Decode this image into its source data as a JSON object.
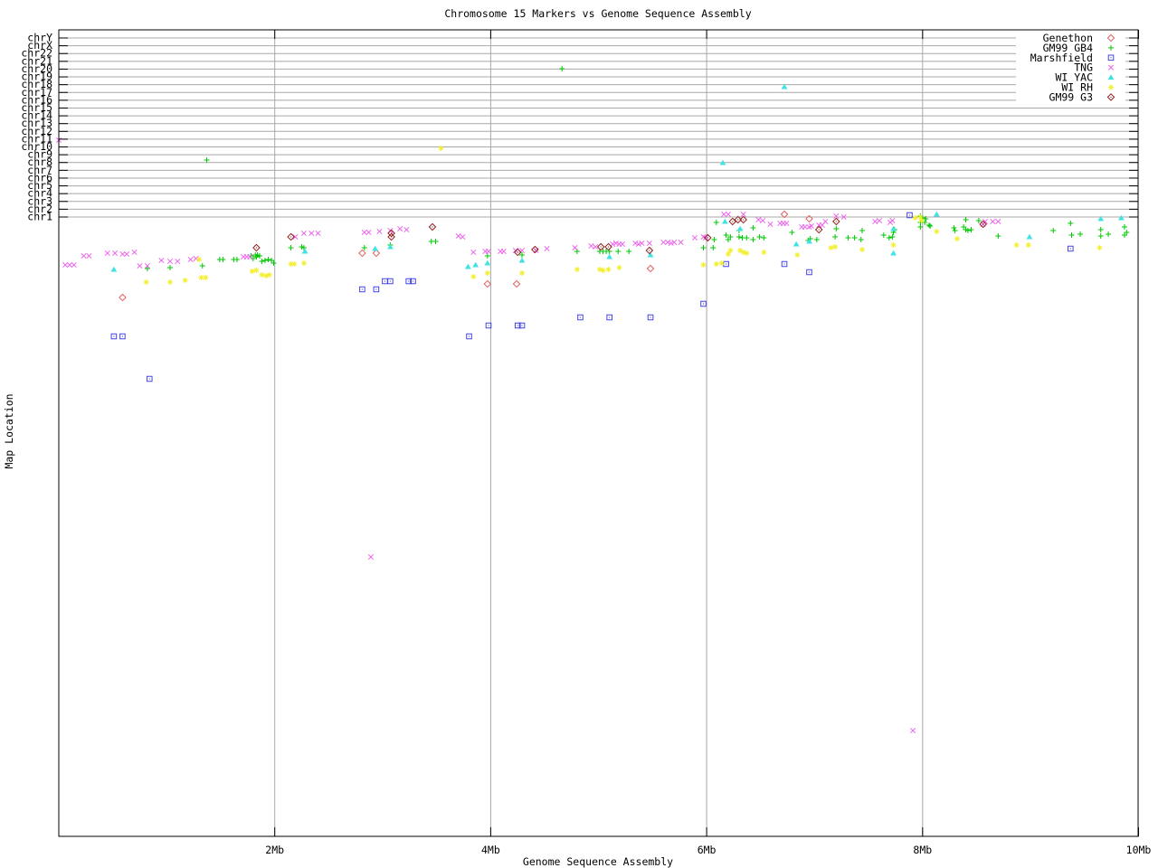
{
  "title": "Chromosome 15 Markers vs Genome Sequence Assembly",
  "axes": {
    "x": {
      "label": "Genome Sequence Assembly",
      "tick_labels": [
        "2Mb",
        "4Mb",
        "6Mb",
        "8Mb",
        "10Mb"
      ],
      "tick_mb": [
        2,
        4,
        6,
        8,
        10
      ],
      "grid_mb": [
        2,
        4,
        6,
        8
      ],
      "range_mb": [
        0,
        10
      ]
    },
    "y": {
      "label": "Map Location",
      "chromosomes": [
        "chrY",
        "chrX",
        "chr22",
        "chr21",
        "chr20",
        "chr19",
        "chr18",
        "chr17",
        "chr16",
        "chr15",
        "chr14",
        "chr13",
        "chr12",
        "chr11",
        "chr10",
        "chr9",
        "chr8",
        "chr7",
        "chr6",
        "chr5",
        "chr4",
        "chr3",
        "chr2",
        "chr1"
      ]
    }
  },
  "colors": {
    "grid": "#a8a8a8",
    "axis": "#000000",
    "background": "#ffffff"
  },
  "legend_position": "top-right-inside",
  "chart_data": {
    "type": "scatter",
    "title": "Chromosome 15 Markers vs Genome Sequence Assembly",
    "xlabel": "Genome Sequence Assembly",
    "ylabel": "Map Location",
    "x_unit": "Mb",
    "x_range": [
      0,
      10
    ],
    "grid": true,
    "y_encoding": "pixel row in 960px-tall image; chromosome tick rows run chrY=42 (top) to chr1=240, main chr15 marker band lies below chr1",
    "series": [
      {
        "name": "Genethon",
        "marker": "open-diamond",
        "color": "#e35f5f",
        "points": [
          [
            0.59,
            329
          ],
          [
            2.81,
            280
          ],
          [
            2.94,
            280
          ],
          [
            3.97,
            314
          ],
          [
            4.24,
            314
          ],
          [
            5.48,
            297
          ],
          [
            6.72,
            237
          ],
          [
            6.95,
            242
          ]
        ]
      },
      {
        "name": "GM99 GB4",
        "marker": "plus",
        "color": "#00c800",
        "points": [
          [
            0.82,
            297
          ],
          [
            1.03,
            296
          ],
          [
            1.33,
            294
          ],
          [
            1.37,
            177
          ],
          [
            1.49,
            287
          ],
          [
            1.52,
            287
          ],
          [
            1.62,
            287
          ],
          [
            1.65,
            287
          ],
          [
            1.78,
            283
          ],
          [
            1.8,
            286
          ],
          [
            1.82,
            282
          ],
          [
            1.83,
            284
          ],
          [
            1.84,
            282
          ],
          [
            1.86,
            283
          ],
          [
            1.88,
            289
          ],
          [
            1.91,
            288
          ],
          [
            1.94,
            287
          ],
          [
            1.97,
            288
          ],
          [
            1.99,
            291
          ],
          [
            2.15,
            274
          ],
          [
            2.25,
            273
          ],
          [
            2.27,
            274
          ],
          [
            2.83,
            274
          ],
          [
            3.07,
            271
          ],
          [
            3.45,
            267
          ],
          [
            3.49,
            267
          ],
          [
            3.97,
            283
          ],
          [
            4.29,
            282
          ],
          [
            4.66,
            76
          ],
          [
            4.8,
            278
          ],
          [
            5.01,
            278
          ],
          [
            5.04,
            278
          ],
          [
            5.07,
            278
          ],
          [
            5.1,
            278
          ],
          [
            5.18,
            278
          ],
          [
            5.28,
            278
          ],
          [
            5.97,
            274
          ],
          [
            6.06,
            274
          ],
          [
            6.07,
            265
          ],
          [
            6.09,
            246
          ],
          [
            6.18,
            260
          ],
          [
            6.2,
            265
          ],
          [
            6.22,
            262
          ],
          [
            6.3,
            262
          ],
          [
            6.3,
            255
          ],
          [
            6.33,
            263
          ],
          [
            6.37,
            263
          ],
          [
            6.43,
            252
          ],
          [
            6.43,
            265
          ],
          [
            6.49,
            262
          ],
          [
            6.53,
            263
          ],
          [
            6.79,
            257
          ],
          [
            6.94,
            266
          ],
          [
            6.96,
            264
          ],
          [
            7.02,
            265
          ],
          [
            7.19,
            262
          ],
          [
            7.2,
            253
          ],
          [
            7.31,
            263
          ],
          [
            7.37,
            263
          ],
          [
            7.43,
            265
          ],
          [
            7.44,
            255
          ],
          [
            7.64,
            260
          ],
          [
            7.69,
            263
          ],
          [
            7.72,
            262
          ],
          [
            7.73,
            257
          ],
          [
            7.74,
            254
          ],
          [
            7.98,
            239
          ],
          [
            7.98,
            246
          ],
          [
            7.98,
            251
          ],
          [
            8.0,
            241
          ],
          [
            8.02,
            246
          ],
          [
            8.03,
            242
          ],
          [
            8.06,
            249
          ],
          [
            8.07,
            250
          ],
          [
            8.29,
            252
          ],
          [
            8.3,
            255
          ],
          [
            8.38,
            251
          ],
          [
            8.4,
            243
          ],
          [
            8.4,
            254
          ],
          [
            8.42,
            255
          ],
          [
            8.45,
            254
          ],
          [
            8.52,
            244
          ],
          [
            8.7,
            261
          ],
          [
            9.21,
            255
          ],
          [
            9.37,
            247
          ],
          [
            9.38,
            260
          ],
          [
            9.46,
            259
          ],
          [
            9.65,
            254
          ],
          [
            9.65,
            261
          ],
          [
            9.72,
            259
          ],
          [
            9.87,
            251
          ],
          [
            9.87,
            260
          ],
          [
            9.89,
            257
          ]
        ]
      },
      {
        "name": "Marshfield",
        "marker": "open-square-dot",
        "color": "#4444e8",
        "points": [
          [
            0.51,
            372
          ],
          [
            0.59,
            372
          ],
          [
            0.84,
            419
          ],
          [
            2.81,
            320
          ],
          [
            2.94,
            320
          ],
          [
            3.02,
            311
          ],
          [
            3.07,
            311
          ],
          [
            3.24,
            311
          ],
          [
            3.28,
            311
          ],
          [
            3.8,
            372
          ],
          [
            3.98,
            360
          ],
          [
            4.25,
            360
          ],
          [
            4.29,
            360
          ],
          [
            4.83,
            351
          ],
          [
            5.1,
            351
          ],
          [
            5.48,
            351
          ],
          [
            5.97,
            336
          ],
          [
            6.18,
            292
          ],
          [
            6.72,
            292
          ],
          [
            6.95,
            301
          ],
          [
            7.88,
            238
          ],
          [
            9.37,
            275
          ]
        ]
      },
      {
        "name": "TNG",
        "marker": "x",
        "color": "#ee5fee",
        "points": [
          [
            0.0,
            155
          ],
          [
            0.06,
            293
          ],
          [
            0.1,
            293
          ],
          [
            0.14,
            293
          ],
          [
            0.23,
            283
          ],
          [
            0.28,
            283
          ],
          [
            0.45,
            280
          ],
          [
            0.52,
            280
          ],
          [
            0.59,
            281
          ],
          [
            0.63,
            281
          ],
          [
            0.7,
            279
          ],
          [
            0.75,
            294
          ],
          [
            0.82,
            294
          ],
          [
            0.95,
            288
          ],
          [
            1.03,
            289
          ],
          [
            1.1,
            289
          ],
          [
            1.22,
            287
          ],
          [
            1.27,
            286
          ],
          [
            1.71,
            284
          ],
          [
            1.74,
            284
          ],
          [
            1.77,
            284
          ],
          [
            2.19,
            262
          ],
          [
            2.27,
            258
          ],
          [
            2.34,
            258
          ],
          [
            2.4,
            258
          ],
          [
            2.83,
            257
          ],
          [
            2.87,
            257
          ],
          [
            2.89,
            616
          ],
          [
            2.97,
            256
          ],
          [
            3.07,
            255
          ],
          [
            3.16,
            253
          ],
          [
            3.22,
            254
          ],
          [
            3.7,
            261
          ],
          [
            3.74,
            262
          ],
          [
            3.84,
            279
          ],
          [
            3.95,
            278
          ],
          [
            3.98,
            278
          ],
          [
            4.09,
            278
          ],
          [
            4.12,
            278
          ],
          [
            4.23,
            277
          ],
          [
            4.29,
            277
          ],
          [
            4.42,
            277
          ],
          [
            4.52,
            275
          ],
          [
            4.78,
            274
          ],
          [
            4.93,
            272
          ],
          [
            4.97,
            273
          ],
          [
            5.13,
            270
          ],
          [
            5.16,
            269
          ],
          [
            5.19,
            270
          ],
          [
            5.22,
            270
          ],
          [
            5.34,
            269
          ],
          [
            5.37,
            270
          ],
          [
            5.4,
            269
          ],
          [
            5.47,
            269
          ],
          [
            5.6,
            268
          ],
          [
            5.64,
            268
          ],
          [
            5.67,
            269
          ],
          [
            5.7,
            268
          ],
          [
            5.76,
            268
          ],
          [
            5.89,
            263
          ],
          [
            5.97,
            262
          ],
          [
            5.99,
            263
          ],
          [
            6.16,
            237
          ],
          [
            6.2,
            237
          ],
          [
            6.34,
            237
          ],
          [
            6.48,
            243
          ],
          [
            6.52,
            244
          ],
          [
            6.59,
            248
          ],
          [
            6.68,
            247
          ],
          [
            6.71,
            247
          ],
          [
            6.74,
            247
          ],
          [
            6.88,
            251
          ],
          [
            6.91,
            251
          ],
          [
            6.95,
            251
          ],
          [
            6.97,
            250
          ],
          [
            7.04,
            249
          ],
          [
            7.07,
            249
          ],
          [
            7.1,
            245
          ],
          [
            7.2,
            239
          ],
          [
            7.27,
            240
          ],
          [
            7.56,
            245
          ],
          [
            7.6,
            244
          ],
          [
            7.7,
            246
          ],
          [
            7.72,
            244
          ],
          [
            7.91,
            808
          ],
          [
            8.56,
            248
          ],
          [
            8.58,
            245
          ],
          [
            8.65,
            245
          ],
          [
            8.7,
            245
          ]
        ]
      },
      {
        "name": "WI YAC",
        "marker": "triangle",
        "color": "#3fe3e3",
        "points": [
          [
            0.51,
            298
          ],
          [
            2.28,
            278
          ],
          [
            2.93,
            275
          ],
          [
            3.07,
            273
          ],
          [
            3.79,
            295
          ],
          [
            3.86,
            293
          ],
          [
            3.97,
            291
          ],
          [
            4.29,
            288
          ],
          [
            5.1,
            284
          ],
          [
            5.48,
            282
          ],
          [
            6.15,
            180
          ],
          [
            6.17,
            245
          ],
          [
            6.31,
            253
          ],
          [
            6.72,
            96
          ],
          [
            6.83,
            270
          ],
          [
            6.95,
            267
          ],
          [
            7.73,
            253
          ],
          [
            7.73,
            280
          ],
          [
            8.13,
            237
          ],
          [
            8.99,
            262
          ],
          [
            9.65,
            242
          ],
          [
            9.84,
            241
          ]
        ]
      },
      {
        "name": "WI RH",
        "marker": "asterisk",
        "color": "#f2ef2e",
        "points": [
          [
            0.81,
            312
          ],
          [
            1.03,
            312
          ],
          [
            1.17,
            310
          ],
          [
            1.3,
            287
          ],
          [
            1.32,
            307
          ],
          [
            1.36,
            307
          ],
          [
            1.79,
            300
          ],
          [
            1.83,
            299
          ],
          [
            1.88,
            304
          ],
          [
            1.92,
            305
          ],
          [
            1.95,
            304
          ],
          [
            2.15,
            292
          ],
          [
            2.18,
            292
          ],
          [
            2.27,
            291
          ],
          [
            3.54,
            164
          ],
          [
            3.84,
            306
          ],
          [
            3.97,
            302
          ],
          [
            4.29,
            302
          ],
          [
            4.8,
            298
          ],
          [
            5.01,
            298
          ],
          [
            5.04,
            299
          ],
          [
            5.09,
            298
          ],
          [
            5.19,
            296
          ],
          [
            5.97,
            293
          ],
          [
            6.09,
            292
          ],
          [
            6.14,
            291
          ],
          [
            6.2,
            281
          ],
          [
            6.22,
            277
          ],
          [
            6.31,
            277
          ],
          [
            6.34,
            279
          ],
          [
            6.37,
            280
          ],
          [
            6.53,
            279
          ],
          [
            6.84,
            282
          ],
          [
            7.15,
            274
          ],
          [
            7.19,
            273
          ],
          [
            7.44,
            276
          ],
          [
            7.73,
            271
          ],
          [
            7.93,
            241
          ],
          [
            7.98,
            240
          ],
          [
            7.99,
            244
          ],
          [
            8.13,
            256
          ],
          [
            8.32,
            264
          ],
          [
            8.87,
            271
          ],
          [
            8.98,
            271
          ],
          [
            9.64,
            274
          ]
        ]
      },
      {
        "name": "GM99 G3",
        "marker": "open-diamond-dot",
        "color": "#8f1f1f",
        "points": [
          [
            1.83,
            274
          ],
          [
            2.15,
            262
          ],
          [
            3.08,
            258
          ],
          [
            3.08,
            262
          ],
          [
            3.46,
            251
          ],
          [
            4.25,
            279
          ],
          [
            4.41,
            276
          ],
          [
            5.02,
            273
          ],
          [
            5.09,
            273
          ],
          [
            5.47,
            277
          ],
          [
            6.01,
            263
          ],
          [
            6.24,
            245
          ],
          [
            6.29,
            243
          ],
          [
            6.34,
            243
          ],
          [
            7.04,
            254
          ],
          [
            7.2,
            245
          ],
          [
            8.56,
            248
          ]
        ]
      }
    ]
  }
}
